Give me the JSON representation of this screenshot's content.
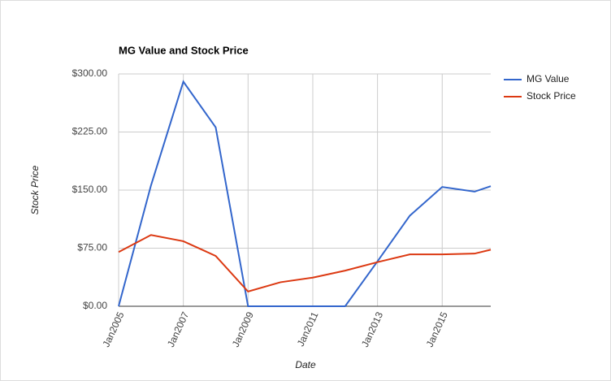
{
  "chart_data": {
    "type": "line",
    "title": "MG Value and Stock Price",
    "x_label": "Date",
    "y_label": "Stock Price",
    "x": [
      "2005-01",
      "2006-01",
      "2007-01",
      "2008-01",
      "2009-01",
      "2010-01",
      "2011-01",
      "2012-01",
      "2013-01",
      "2014-01",
      "2015-01",
      "2016-01",
      "2016-07"
    ],
    "series": [
      {
        "name": "MG Value",
        "color": "#3366cc",
        "values": [
          0,
          156,
          290,
          231,
          0,
          0,
          0,
          0,
          58,
          117,
          154,
          148,
          155
        ]
      },
      {
        "name": "Stock Price",
        "color": "#dc3912",
        "values": [
          70,
          92,
          84,
          65,
          19,
          31,
          37,
          46,
          57,
          67,
          67,
          68,
          73
        ]
      }
    ],
    "xlim": [
      "2005-01",
      "2016-07"
    ],
    "xticks": [
      {
        "value": "2005-01",
        "label": "Jan2005"
      },
      {
        "value": "2007-01",
        "label": "Jan2007"
      },
      {
        "value": "2009-01",
        "label": "Jan2009"
      },
      {
        "value": "2011-01",
        "label": "Jan2011"
      },
      {
        "value": "2013-01",
        "label": "Jan2013"
      },
      {
        "value": "2015-01",
        "label": "Jan2015"
      }
    ],
    "ylim": [
      0,
      300
    ],
    "yticks": [
      {
        "value": 0,
        "label": "$0.00"
      },
      {
        "value": 75,
        "label": "$75.00"
      },
      {
        "value": 150,
        "label": "$150.00"
      },
      {
        "value": 225,
        "label": "$225.00"
      },
      {
        "value": 300,
        "label": "$300.00"
      }
    ],
    "grid": true,
    "legend": "right"
  }
}
